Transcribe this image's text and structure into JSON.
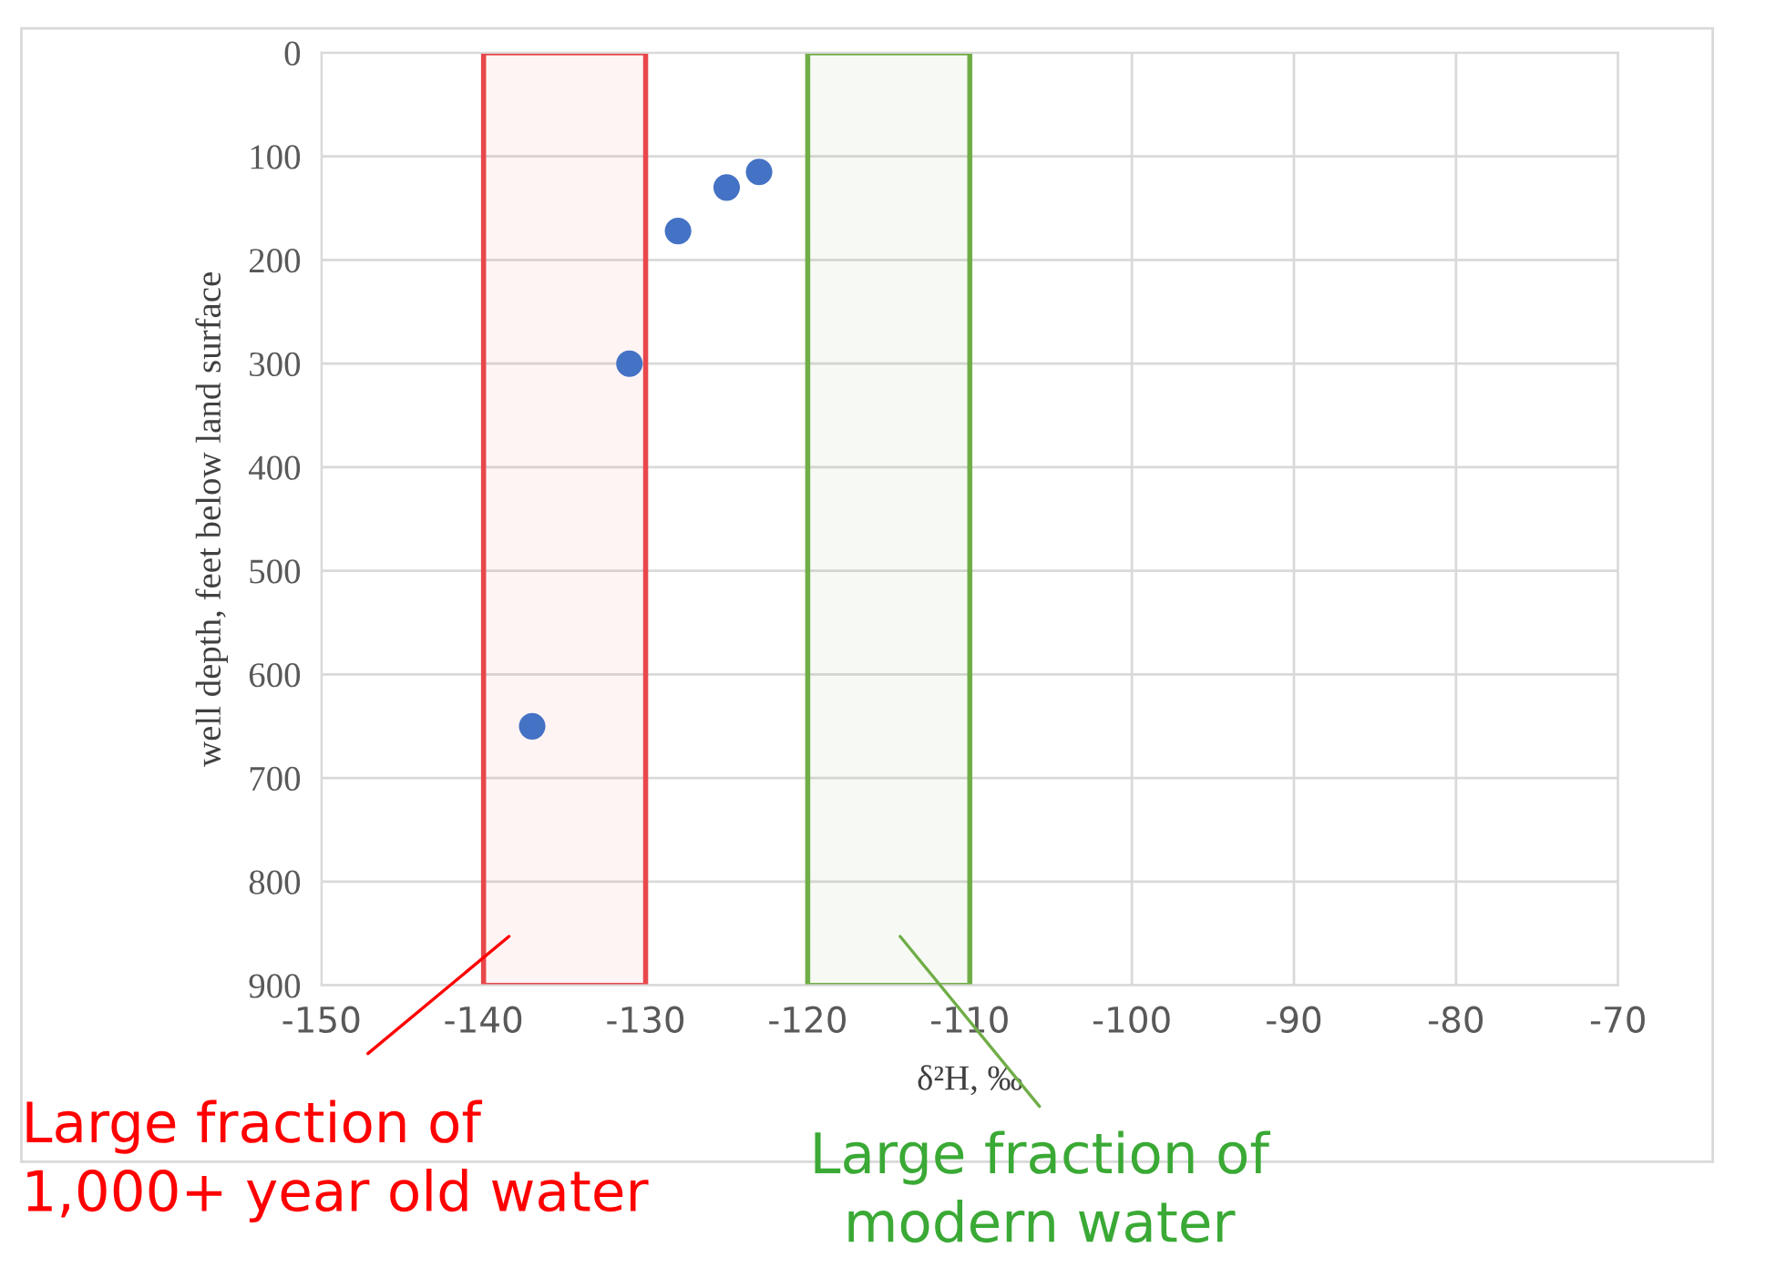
{
  "chart_data": {
    "type": "scatter",
    "xlabel": "δ²H, ‰",
    "ylabel": "well depth, feet below land surface",
    "x": [
      -137,
      -131,
      -128,
      -125,
      -123
    ],
    "series": [
      {
        "color": "#4472c4",
        "values": [
          650,
          300,
          172,
          130,
          115
        ]
      }
    ],
    "xlim": [
      -150,
      -70
    ],
    "xticks": [
      -150,
      -140,
      -130,
      -120,
      -110,
      -100,
      -90,
      -80,
      -70
    ],
    "ylim": [
      900,
      0
    ],
    "yticks": [
      0,
      100,
      200,
      300,
      400,
      500,
      600,
      700,
      800,
      900
    ],
    "grid": true,
    "marker": "circle",
    "bands": [
      {
        "axis": "x",
        "from": -140,
        "to": -130,
        "color": "#e8474b"
      },
      {
        "axis": "x",
        "from": -120,
        "to": -110,
        "color": "#70ad47"
      }
    ],
    "annotations": [
      "Large fraction of\n1,000+ year old water",
      "Large fraction of\nmodern water"
    ]
  }
}
